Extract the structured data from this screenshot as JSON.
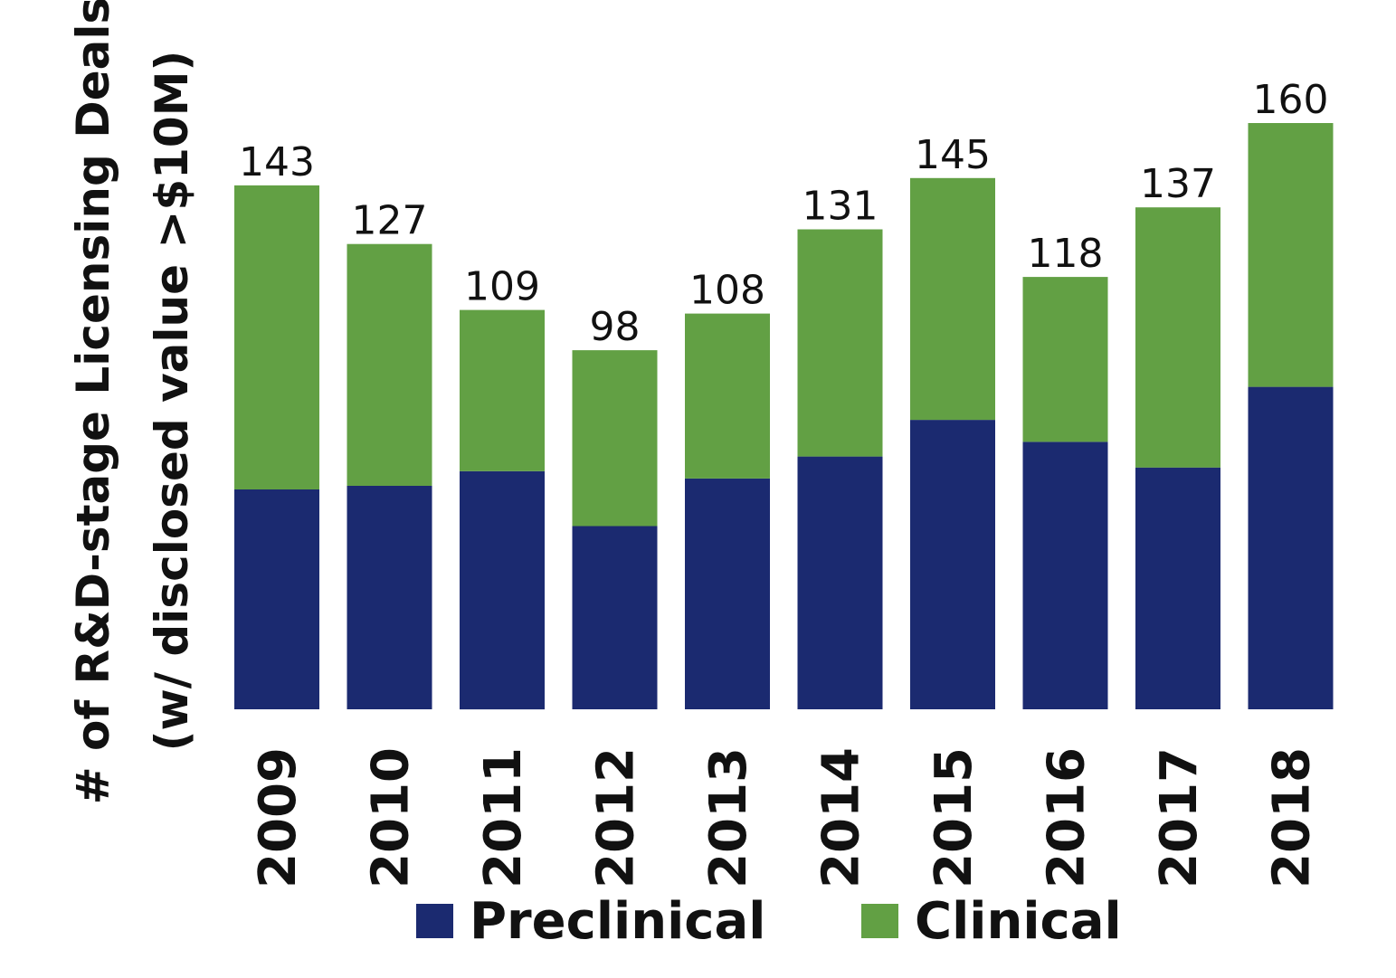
{
  "chart_data": {
    "type": "bar",
    "stacked": true,
    "title": "",
    "xlabel": "",
    "ylabel": "# of R&D-stage Licensing Deals",
    "ylabel_line2": "(w/ disclosed value >$10M)",
    "categories": [
      "2009",
      "2010",
      "2011",
      "2012",
      "2013",
      "2014",
      "2015",
      "2016",
      "2017",
      "2018"
    ],
    "series": [
      {
        "name": "Preclinical",
        "color": "#1b2a70",
        "values": [
          60,
          61,
          65,
          50,
          63,
          69,
          79,
          73,
          66,
          88
        ]
      },
      {
        "name": "Clinical",
        "color": "#62a044",
        "values": [
          83,
          66,
          44,
          48,
          45,
          62,
          66,
          45,
          71,
          72
        ]
      }
    ],
    "totals": [
      "143",
      "127",
      "109",
      "98",
      "108",
      "131",
      "145",
      "118",
      "137",
      "160"
    ],
    "ylim": [
      0,
      160
    ],
    "grid": false,
    "legend_position": "bottom"
  }
}
